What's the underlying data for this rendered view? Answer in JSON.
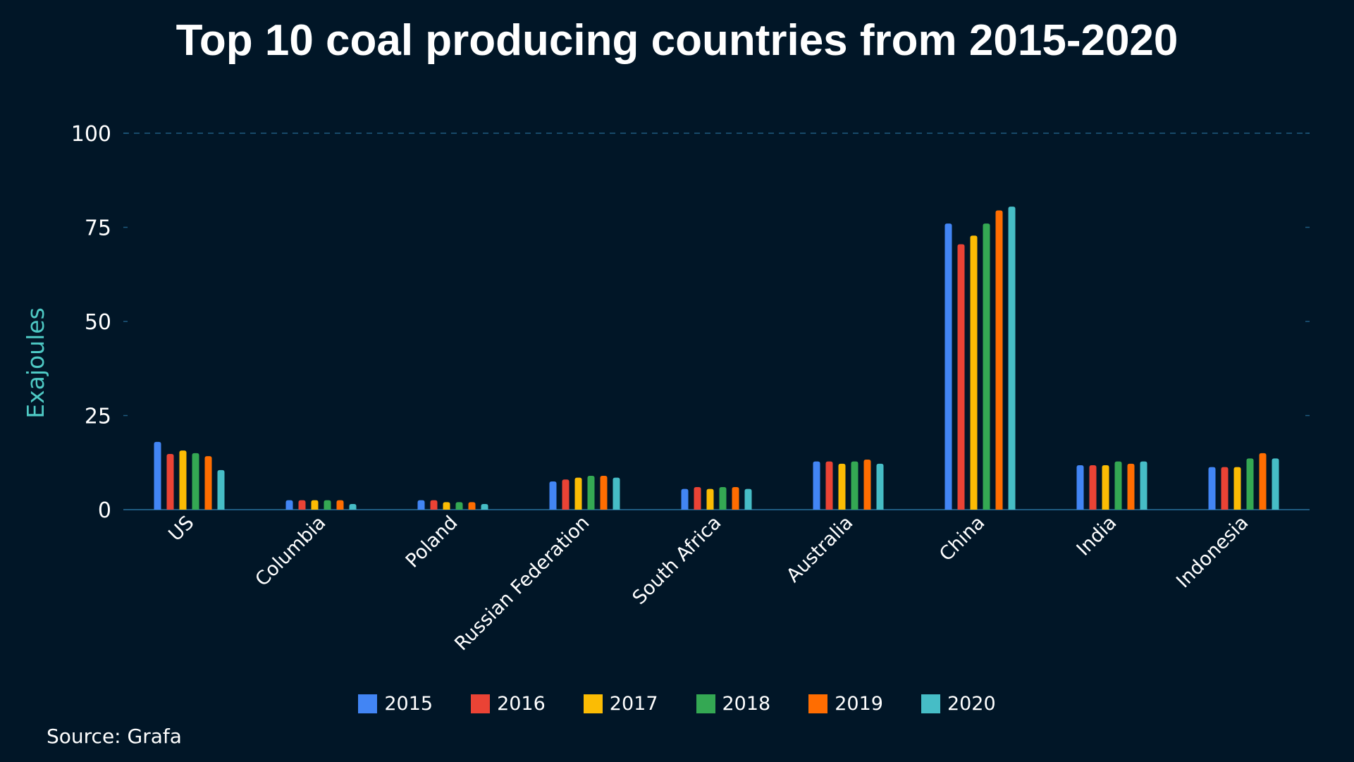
{
  "chart_data": {
    "type": "bar",
    "title": "Top 10 coal producing countries from 2015-2020",
    "xlabel": "",
    "ylabel": "Exajoules",
    "ylim": [
      0,
      100
    ],
    "yticks": [
      0,
      25,
      50,
      75,
      100
    ],
    "grid": "horizontal dashed at max",
    "legend_position": "bottom",
    "categories": [
      "US",
      "Columbia",
      "Poland",
      "Russian Federation",
      "South Africa",
      "Australia",
      "China",
      "India",
      "Indonesia"
    ],
    "series": [
      {
        "name": "2015",
        "color": "#4285f4",
        "values": [
          18.0,
          2.5,
          2.5,
          7.5,
          5.5,
          12.8,
          76.0,
          11.8,
          11.3
        ]
      },
      {
        "name": "2016",
        "color": "#ea4335",
        "values": [
          14.8,
          2.5,
          2.5,
          8.0,
          6.0,
          12.8,
          70.5,
          11.8,
          11.3
        ]
      },
      {
        "name": "2017",
        "color": "#fbbc04",
        "values": [
          15.7,
          2.5,
          2.0,
          8.5,
          5.5,
          12.2,
          72.8,
          11.8,
          11.3
        ]
      },
      {
        "name": "2018",
        "color": "#34a853",
        "values": [
          15.0,
          2.5,
          2.0,
          9.0,
          6.0,
          12.8,
          76.0,
          12.8,
          13.6
        ]
      },
      {
        "name": "2019",
        "color": "#ff6d01",
        "values": [
          14.2,
          2.5,
          2.0,
          9.0,
          6.0,
          13.3,
          79.5,
          12.2,
          15.0
        ]
      },
      {
        "name": "2020",
        "color": "#46bdc6",
        "values": [
          10.5,
          1.5,
          1.5,
          8.5,
          5.5,
          12.2,
          80.5,
          12.8,
          13.6
        ]
      }
    ]
  },
  "source": "Source: Grafa",
  "colors": {
    "background": "#011627",
    "axis": "#1f5a80",
    "ylabel": "#4ec9c4",
    "text": "#ffffff"
  }
}
